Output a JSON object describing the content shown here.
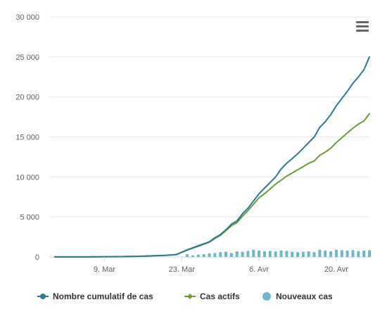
{
  "chart_data": {
    "type": "line",
    "title": "",
    "xlabel": "",
    "ylabel": "",
    "ylim": [
      0,
      30000
    ],
    "y_ticks": [
      0,
      5000,
      10000,
      15000,
      20000,
      25000,
      30000
    ],
    "y_tick_labels": [
      "0",
      "5 000",
      "10 000",
      "15 000",
      "20 000",
      "25 000",
      "30 000"
    ],
    "x_ticks": [
      {
        "day": 9,
        "label": "9. Mar"
      },
      {
        "day": 23,
        "label": "23. Mar"
      },
      {
        "day": 37,
        "label": "6. Avr"
      },
      {
        "day": 51,
        "label": "20. Avr"
      }
    ],
    "x_start_day": -1,
    "x_end_day": 57,
    "grid": "horizontal",
    "legend_position": "bottom",
    "series": [
      {
        "name": "Nombre cumulatif de cas",
        "kind": "line",
        "color": "#2b7b93",
        "values": [
          [
            0,
            5
          ],
          [
            4,
            10
          ],
          [
            8,
            20
          ],
          [
            12,
            40
          ],
          [
            14,
            60
          ],
          [
            16,
            100
          ],
          [
            18,
            150
          ],
          [
            20,
            200
          ],
          [
            22,
            300
          ],
          [
            24,
            900
          ],
          [
            26,
            1400
          ],
          [
            28,
            1900
          ],
          [
            29,
            2400
          ],
          [
            30,
            2800
          ],
          [
            31,
            3400
          ],
          [
            32,
            4100
          ],
          [
            33,
            4500
          ],
          [
            34,
            5400
          ],
          [
            35,
            6100
          ],
          [
            36,
            7000
          ],
          [
            37,
            7900
          ],
          [
            38,
            8600
          ],
          [
            39,
            9300
          ],
          [
            40,
            10000
          ],
          [
            41,
            11000
          ],
          [
            42,
            11700
          ],
          [
            43,
            12300
          ],
          [
            44,
            12900
          ],
          [
            45,
            13600
          ],
          [
            46,
            14300
          ],
          [
            47,
            15000
          ],
          [
            48,
            16200
          ],
          [
            49,
            16900
          ],
          [
            50,
            17800
          ],
          [
            51,
            18900
          ],
          [
            52,
            19800
          ],
          [
            53,
            20700
          ],
          [
            54,
            21700
          ],
          [
            55,
            22500
          ],
          [
            56,
            23400
          ],
          [
            57,
            25000
          ]
        ]
      },
      {
        "name": "Cas actifs",
        "kind": "line",
        "color": "#6a9e31",
        "marker": "diamond",
        "values": [
          [
            0,
            5
          ],
          [
            4,
            10
          ],
          [
            8,
            20
          ],
          [
            12,
            40
          ],
          [
            14,
            60
          ],
          [
            16,
            100
          ],
          [
            18,
            150
          ],
          [
            20,
            200
          ],
          [
            22,
            300
          ],
          [
            24,
            850
          ],
          [
            26,
            1350
          ],
          [
            28,
            1850
          ],
          [
            29,
            2300
          ],
          [
            30,
            2700
          ],
          [
            31,
            3300
          ],
          [
            32,
            3900
          ],
          [
            33,
            4300
          ],
          [
            34,
            5100
          ],
          [
            35,
            5800
          ],
          [
            36,
            6600
          ],
          [
            37,
            7400
          ],
          [
            38,
            7900
          ],
          [
            39,
            8500
          ],
          [
            40,
            9100
          ],
          [
            41,
            9600
          ],
          [
            42,
            10100
          ],
          [
            43,
            10500
          ],
          [
            44,
            10900
          ],
          [
            45,
            11300
          ],
          [
            46,
            11700
          ],
          [
            47,
            12000
          ],
          [
            48,
            12700
          ],
          [
            49,
            13100
          ],
          [
            50,
            13600
          ],
          [
            51,
            14300
          ],
          [
            52,
            14900
          ],
          [
            53,
            15500
          ],
          [
            54,
            16100
          ],
          [
            55,
            16600
          ],
          [
            56,
            17000
          ],
          [
            57,
            17900
          ]
        ]
      },
      {
        "name": "Nouveaux cas",
        "kind": "column",
        "color": "#6fb7cf",
        "values": [
          [
            24,
            350
          ],
          [
            25,
            200
          ],
          [
            26,
            300
          ],
          [
            27,
            350
          ],
          [
            28,
            450
          ],
          [
            29,
            500
          ],
          [
            30,
            600
          ],
          [
            31,
            650
          ],
          [
            32,
            500
          ],
          [
            33,
            700
          ],
          [
            34,
            650
          ],
          [
            35,
            750
          ],
          [
            36,
            900
          ],
          [
            37,
            800
          ],
          [
            38,
            700
          ],
          [
            39,
            750
          ],
          [
            40,
            700
          ],
          [
            41,
            800
          ],
          [
            42,
            750
          ],
          [
            43,
            650
          ],
          [
            44,
            600
          ],
          [
            45,
            650
          ],
          [
            46,
            700
          ],
          [
            47,
            600
          ],
          [
            48,
            900
          ],
          [
            49,
            800
          ],
          [
            50,
            700
          ],
          [
            51,
            900
          ],
          [
            52,
            850
          ],
          [
            53,
            800
          ],
          [
            54,
            850
          ],
          [
            55,
            750
          ],
          [
            56,
            800
          ],
          [
            57,
            850
          ]
        ]
      }
    ]
  },
  "ui": {
    "menu_icon": "hamburger-menu-icon"
  }
}
